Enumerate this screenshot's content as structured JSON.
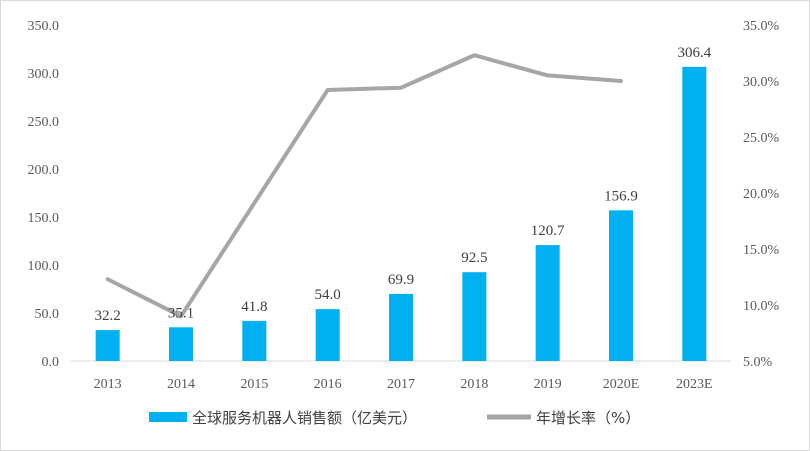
{
  "chart_data": {
    "type": "bar+line",
    "categories": [
      "2013",
      "2014",
      "2015",
      "2016",
      "2017",
      "2018",
      "2019",
      "2020E",
      "2023E"
    ],
    "series": [
      {
        "name": "全球服务机器人销售额（亿美元）",
        "type": "bar",
        "axis": "left",
        "color": "#00b0f0",
        "values": [
          32.2,
          35.1,
          41.8,
          54.0,
          69.9,
          92.5,
          120.7,
          156.9,
          306.4
        ],
        "labels": [
          "32.2",
          "35.1",
          "41.8",
          "54.0",
          "69.9",
          "92.5",
          "120.7",
          "156.9",
          "306.4"
        ]
      },
      {
        "name": "年增长率（%）",
        "type": "line",
        "axis": "right",
        "color": "#a6a6a6",
        "values": [
          12.3,
          9.0,
          19.1,
          29.2,
          29.4,
          32.3,
          30.5,
          30.0,
          null
        ]
      }
    ],
    "y_left": {
      "ylim": [
        0,
        350
      ],
      "ticks": [
        0,
        50,
        100,
        150,
        200,
        250,
        300,
        350
      ],
      "tick_labels": [
        "0.0",
        "50.0",
        "100.0",
        "150.0",
        "200.0",
        "250.0",
        "300.0",
        "350.0"
      ]
    },
    "y_right": {
      "ylim": [
        5,
        35
      ],
      "ticks": [
        5,
        10,
        15,
        20,
        25,
        30,
        35
      ],
      "tick_labels": [
        "5.0%",
        "10.0%",
        "15.0%",
        "20.0%",
        "25.0%",
        "30.0%",
        "35.0%"
      ]
    },
    "title": "",
    "xlabel": "",
    "ylabel": "",
    "grid": false,
    "legend": "bottom"
  }
}
